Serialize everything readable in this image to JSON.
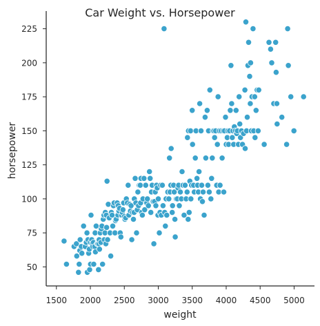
{
  "chart_data": {
    "type": "scatter",
    "title": "Car Weight vs. Horsepower",
    "xlabel": "weight",
    "ylabel": "horsepower",
    "xlim": [
      1350,
      5300
    ],
    "ylim": [
      36,
      238
    ],
    "xticks": [
      1500,
      2000,
      2500,
      3000,
      3500,
      4000,
      4500,
      5000
    ],
    "yticks": [
      50,
      75,
      100,
      125,
      150,
      175,
      200,
      225
    ],
    "grid": false,
    "point_color": "#3ba3cc",
    "series": [
      {
        "points": [
          [
            1613,
            69
          ],
          [
            1649,
            52
          ],
          [
            1760,
            65
          ],
          [
            1795,
            67
          ],
          [
            1800,
            58
          ],
          [
            1825,
            46
          ],
          [
            1835,
            52
          ],
          [
            1845,
            62
          ],
          [
            1850,
            70
          ],
          [
            1867,
            65
          ],
          [
            1875,
            60
          ],
          [
            1900,
            80
          ],
          [
            1925,
            65
          ],
          [
            1940,
            68
          ],
          [
            1950,
            75
          ],
          [
            1955,
            46
          ],
          [
            1965,
            70
          ],
          [
            1975,
            60
          ],
          [
            1985,
            63
          ],
          [
            1990,
            48
          ],
          [
            2000,
            68
          ],
          [
            2003,
            52
          ],
          [
            2010,
            88
          ],
          [
            2020,
            70
          ],
          [
            2025,
            67
          ],
          [
            2035,
            65
          ],
          [
            2045,
            68
          ],
          [
            2050,
            52
          ],
          [
            2065,
            65
          ],
          [
            2070,
            75
          ],
          [
            2075,
            61
          ],
          [
            2085,
            80
          ],
          [
            2100,
            67
          ],
          [
            2110,
            67
          ],
          [
            2120,
            48
          ],
          [
            2125,
            67
          ],
          [
            2130,
            70
          ],
          [
            2135,
            63
          ],
          [
            2145,
            75
          ],
          [
            2155,
            68
          ],
          [
            2160,
            78
          ],
          [
            2170,
            80
          ],
          [
            2180,
            52
          ],
          [
            2190,
            85
          ],
          [
            2200,
            88
          ],
          [
            2205,
            70
          ],
          [
            2215,
            75
          ],
          [
            2220,
            90
          ],
          [
            2228,
            67
          ],
          [
            2234,
            88
          ],
          [
            2240,
            79
          ],
          [
            2246,
            113
          ],
          [
            2254,
            70
          ],
          [
            2264,
            96
          ],
          [
            2278,
            86
          ],
          [
            2290,
            75
          ],
          [
            2300,
            58
          ],
          [
            2310,
            90
          ],
          [
            2320,
            88
          ],
          [
            2330,
            80
          ],
          [
            2340,
            95
          ],
          [
            2350,
            97
          ],
          [
            2362,
            75
          ],
          [
            2370,
            84
          ],
          [
            2380,
            85
          ],
          [
            2395,
            97
          ],
          [
            2405,
            88
          ],
          [
            2410,
            95
          ],
          [
            2420,
            91
          ],
          [
            2430,
            93
          ],
          [
            2440,
            75
          ],
          [
            2450,
            72
          ],
          [
            2460,
            88
          ],
          [
            2470,
            90
          ],
          [
            2480,
            92
          ],
          [
            2490,
            97
          ],
          [
            2500,
            87
          ],
          [
            2510,
            85
          ],
          [
            2520,
            86
          ],
          [
            2530,
            100
          ],
          [
            2545,
            97
          ],
          [
            2556,
            110
          ],
          [
            2566,
            88
          ],
          [
            2580,
            96
          ],
          [
            2590,
            91
          ],
          [
            2600,
            95
          ],
          [
            2610,
            70
          ],
          [
            2620,
            90
          ],
          [
            2635,
            85
          ],
          [
            2645,
            90
          ],
          [
            2648,
            100
          ],
          [
            2660,
            115
          ],
          [
            2670,
            97
          ],
          [
            2680,
            75
          ],
          [
            2690,
            92
          ],
          [
            2700,
            105
          ],
          [
            2710,
            95
          ],
          [
            2720,
            110
          ],
          [
            2735,
            110
          ],
          [
            2740,
            97
          ],
          [
            2745,
            115
          ],
          [
            2755,
            90
          ],
          [
            2765,
            88
          ],
          [
            2775,
            100
          ],
          [
            2790,
            115
          ],
          [
            2800,
            92
          ],
          [
            2815,
            110
          ],
          [
            2830,
            97
          ],
          [
            2840,
            100
          ],
          [
            2855,
            95
          ],
          [
            2870,
            120
          ],
          [
            2880,
            115
          ],
          [
            2890,
            90
          ],
          [
            2900,
            105
          ],
          [
            2910,
            110
          ],
          [
            2925,
            98
          ],
          [
            2935,
            67
          ],
          [
            2945,
            98
          ],
          [
            2955,
            105
          ],
          [
            2965,
            95
          ],
          [
            2975,
            110
          ],
          [
            2985,
            108
          ],
          [
            2995,
            88
          ],
          [
            3000,
            100
          ],
          [
            3015,
            75
          ],
          [
            3025,
            90
          ],
          [
            3035,
            110
          ],
          [
            3045,
            88
          ],
          [
            3060,
            110
          ],
          [
            3070,
            95
          ],
          [
            3085,
            225
          ],
          [
            3095,
            90
          ],
          [
            3105,
            80
          ],
          [
            3115,
            100
          ],
          [
            3125,
            88
          ],
          [
            3140,
            105
          ],
          [
            3155,
            100
          ],
          [
            3165,
            130
          ],
          [
            3175,
            105
          ],
          [
            3185,
            110
          ],
          [
            3190,
            137
          ],
          [
            3205,
            90
          ],
          [
            3210,
            95
          ],
          [
            3225,
            110
          ],
          [
            3235,
            105
          ],
          [
            3245,
            85
          ],
          [
            3250,
            72
          ],
          [
            3265,
            100
          ],
          [
            3280,
            100
          ],
          [
            3290,
            108
          ],
          [
            3300,
            110
          ],
          [
            3310,
            95
          ],
          [
            3325,
            105
          ],
          [
            3340,
            100
          ],
          [
            3350,
            120
          ],
          [
            3365,
            110
          ],
          [
            3380,
            88
          ],
          [
            3395,
            110
          ],
          [
            3410,
            100
          ],
          [
            3425,
            105
          ],
          [
            3430,
            145
          ],
          [
            3440,
            85
          ],
          [
            3445,
            150
          ],
          [
            3455,
            90
          ],
          [
            3465,
            113
          ],
          [
            3475,
            150
          ],
          [
            3480,
            100
          ],
          [
            3490,
            110
          ],
          [
            3500,
            165
          ],
          [
            3505,
            140
          ],
          [
            3520,
            110
          ],
          [
            3530,
            105
          ],
          [
            3545,
            130
          ],
          [
            3555,
            150
          ],
          [
            3570,
            115
          ],
          [
            3580,
            110
          ],
          [
            3590,
            105
          ],
          [
            3600,
            120
          ],
          [
            3610,
            170
          ],
          [
            3620,
            100
          ],
          [
            3630,
            150
          ],
          [
            3640,
            110
          ],
          [
            3650,
            98
          ],
          [
            3660,
            105
          ],
          [
            3675,
            88
          ],
          [
            3690,
            160
          ],
          [
            3700,
            130
          ],
          [
            3720,
            165
          ],
          [
            3730,
            110
          ],
          [
            3740,
            150
          ],
          [
            3750,
            105
          ],
          [
            3760,
            180
          ],
          [
            3775,
            100
          ],
          [
            3785,
            115
          ],
          [
            3795,
            130
          ],
          [
            3805,
            150
          ],
          [
            3820,
            150
          ],
          [
            3830,
            145
          ],
          [
            3845,
            150
          ],
          [
            3860,
            110
          ],
          [
            3870,
            140
          ],
          [
            3880,
            175
          ],
          [
            3890,
            105
          ],
          [
            3900,
            150
          ],
          [
            3910,
            110
          ],
          [
            3925,
            150
          ],
          [
            3940,
            130
          ],
          [
            3955,
            150
          ],
          [
            3965,
            105
          ],
          [
            3975,
            150
          ],
          [
            3990,
            160
          ],
          [
            4000,
            140
          ],
          [
            4015,
            145
          ],
          [
            4025,
            150
          ],
          [
            4035,
            140
          ],
          [
            4050,
            150
          ],
          [
            4060,
            165
          ],
          [
            4070,
            198
          ],
          [
            4080,
            170
          ],
          [
            4090,
            145
          ],
          [
            4100,
            150
          ],
          [
            4110,
            140
          ],
          [
            4120,
            153
          ],
          [
            4135,
            150
          ],
          [
            4145,
            165
          ],
          [
            4155,
            148
          ],
          [
            4165,
            150
          ],
          [
            4180,
            140
          ],
          [
            4190,
            175
          ],
          [
            4200,
            155
          ],
          [
            4210,
            145
          ],
          [
            4225,
            150
          ],
          [
            4240,
            140
          ],
          [
            4255,
            148
          ],
          [
            4275,
            180
          ],
          [
            4280,
            137
          ],
          [
            4290,
            230
          ],
          [
            4300,
            150
          ],
          [
            4310,
            160
          ],
          [
            4320,
            198
          ],
          [
            4330,
            215
          ],
          [
            4345,
            190
          ],
          [
            4355,
            170
          ],
          [
            4360,
            200
          ],
          [
            4370,
            150
          ],
          [
            4380,
            175
          ],
          [
            4395,
            225
          ],
          [
            4405,
            150
          ],
          [
            4420,
            175
          ],
          [
            4425,
            145
          ],
          [
            4440,
            165
          ],
          [
            4455,
            180
          ],
          [
            4470,
            150
          ],
          [
            4480,
            180
          ],
          [
            4560,
            140
          ],
          [
            4630,
            215
          ],
          [
            4654,
            210
          ],
          [
            4670,
            200
          ],
          [
            4700,
            170
          ],
          [
            4728,
            215
          ],
          [
            4735,
            193
          ],
          [
            4746,
            170
          ],
          [
            4905,
            225
          ],
          [
            4915,
            198
          ],
          [
            4952,
            175
          ],
          [
            4997,
            150
          ],
          [
            5140,
            175
          ],
          [
            4890,
            140
          ],
          [
            4820,
            160
          ],
          [
            4750,
            155
          ]
        ]
      }
    ]
  }
}
